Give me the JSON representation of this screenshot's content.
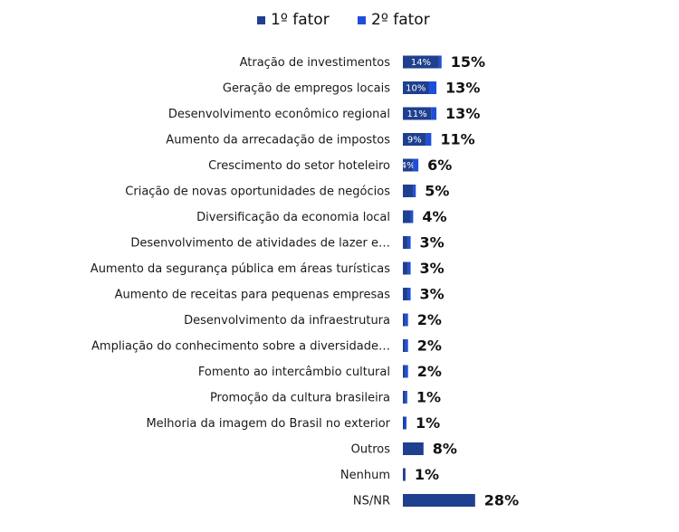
{
  "colors": {
    "series1": "#1F3F8F",
    "series2": "#1F4FD8"
  },
  "chart_data": {
    "type": "bar",
    "orientation": "horizontal",
    "stacked": true,
    "legend": "top-center",
    "grid": false,
    "xlim": [
      0,
      100
    ],
    "categories": [
      "Atração de investimentos",
      "Geração de empregos locais",
      "Desenvolvimento econômico regional",
      "Aumento da arrecadação de impostos",
      "Crescimento do setor hoteleiro",
      "Criação de novas oportunidades de negócios",
      "Diversificação da economia local",
      "Desenvolvimento de atividades de lazer e…",
      "Aumento da segurança pública em áreas turísticas",
      "Aumento de receitas para pequenas empresas",
      "Desenvolvimento da infraestrutura",
      "Ampliação do conhecimento sobre a diversidade…",
      "Fomento ao intercâmbio cultural",
      "Promoção da cultura brasileira",
      "Melhoria da imagem do Brasil no exterior",
      "Outros",
      "Nenhum",
      "NS/NR"
    ],
    "series": [
      {
        "name": "1º fator",
        "values": [
          14,
          10,
          11,
          9,
          4,
          4,
          3,
          2,
          2,
          2,
          1,
          1,
          1,
          1,
          0.5,
          8,
          1,
          28
        ],
        "labels": [
          "14%",
          "10%",
          "11%",
          "9%",
          "4%",
          "",
          "",
          "",
          "",
          "",
          "",
          "",
          "",
          "",
          "",
          "",
          "",
          ""
        ]
      },
      {
        "name": "2º fator",
        "values": [
          1,
          3,
          2,
          2,
          2,
          1,
          1,
          1,
          1,
          1,
          1,
          1,
          1,
          0.5,
          0.5,
          0,
          0,
          0
        ]
      }
    ],
    "total_labels": [
      "15%",
      "13%",
      "13%",
      "11%",
      "6%",
      "5%",
      "4%",
      "3%",
      "3%",
      "3%",
      "2%",
      "2%",
      "2%",
      "1%",
      "1%",
      "8%",
      "1%",
      "28%"
    ]
  }
}
